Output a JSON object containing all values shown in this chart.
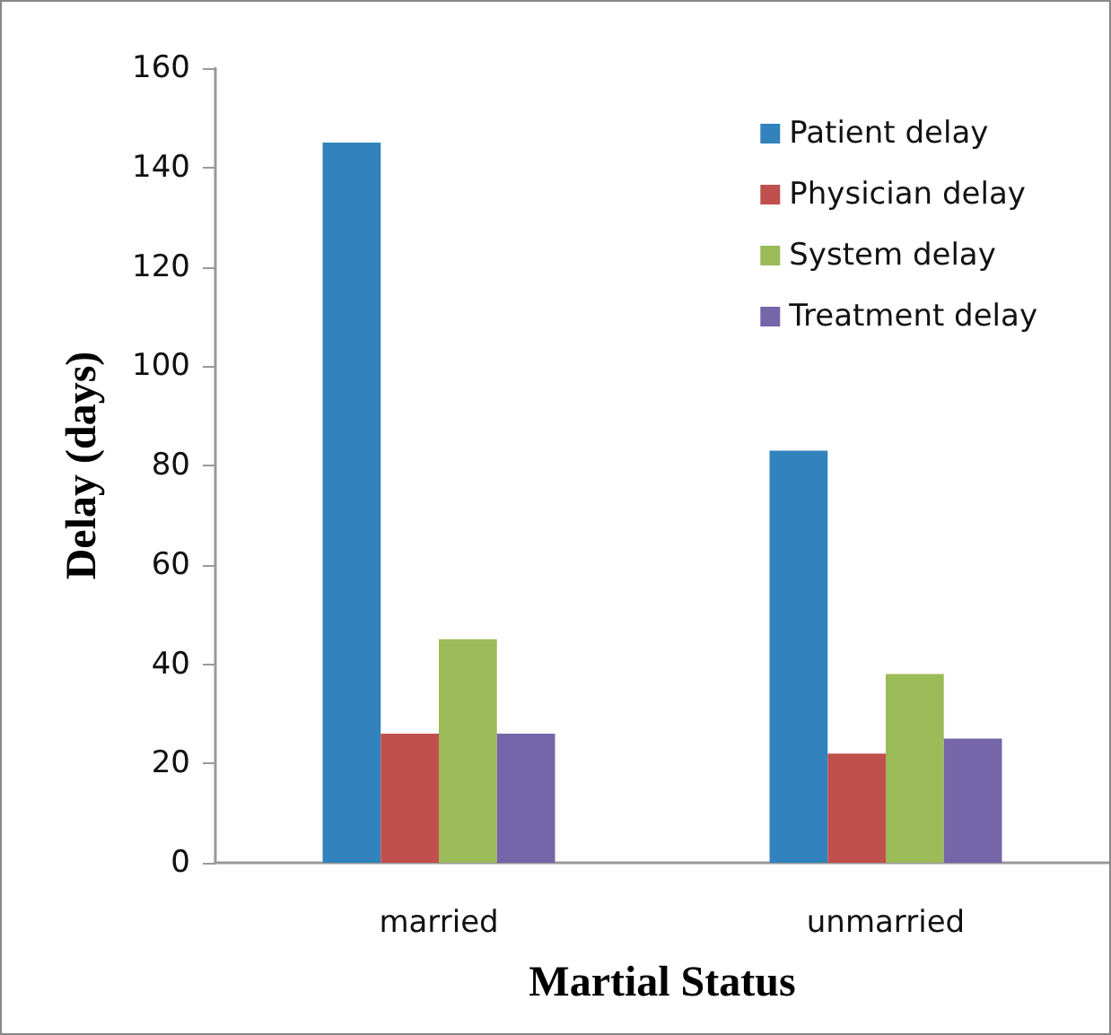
{
  "chart_data": {
    "type": "bar",
    "xlabel": "Martial Status",
    "ylabel": "Delay (days)",
    "categories": [
      "married",
      "unmarried"
    ],
    "series": [
      {
        "name": "Patient delay",
        "color": "#3182bd",
        "values": [
          145,
          83
        ]
      },
      {
        "name": "Physician delay",
        "color": "#c0504d",
        "values": [
          26,
          22
        ]
      },
      {
        "name": "System delay",
        "color": "#9bbb59",
        "values": [
          45,
          38
        ]
      },
      {
        "name": "Treatment delay",
        "color": "#7566a9",
        "values": [
          26,
          25
        ]
      }
    ],
    "ylim": [
      0,
      160
    ],
    "yticks": [
      0,
      20,
      40,
      60,
      80,
      100,
      120,
      140,
      160
    ],
    "grid": false,
    "legend": "top right"
  }
}
